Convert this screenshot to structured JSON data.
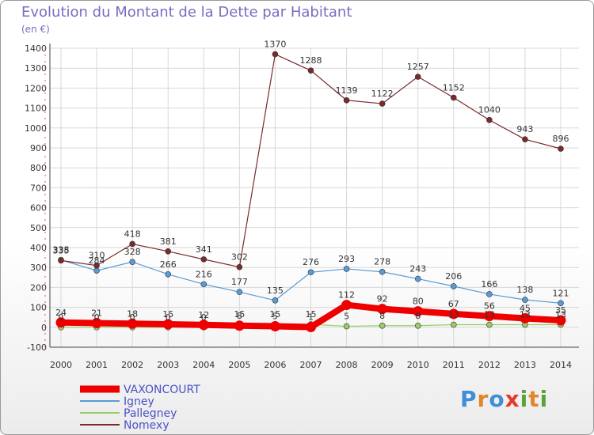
{
  "title": "Evolution du Montant de la Dette par Habitant",
  "subtitle": "(en €)",
  "brand": {
    "letters": [
      "P",
      "r",
      "o",
      "x",
      "i",
      "t",
      "i"
    ]
  },
  "chart_data": {
    "type": "line",
    "x": [
      2000,
      2001,
      2002,
      2003,
      2004,
      2005,
      2006,
      2007,
      2008,
      2009,
      2010,
      2011,
      2012,
      2013,
      2014
    ],
    "ylim": [
      -100,
      1400
    ],
    "yticks": [
      -100,
      0,
      100,
      200,
      300,
      400,
      500,
      600,
      700,
      800,
      900,
      1000,
      1100,
      1200,
      1300,
      1400
    ],
    "grid": true,
    "legend_position": "bottom-left",
    "series": [
      {
        "name": "VAXONCOURT",
        "color": "#ee0000",
        "values": [
          24,
          21,
          18,
          15,
          12,
          8,
          5,
          1,
          112,
          92,
          80,
          67,
          56,
          45,
          35
        ]
      },
      {
        "name": "Igney",
        "color": "#5b9bd5",
        "values": [
          338,
          284,
          328,
          266,
          216,
          177,
          135,
          276,
          293,
          278,
          243,
          206,
          166,
          138,
          121
        ]
      },
      {
        "name": "Pallegney",
        "color": "#99cc66",
        "values": [
          0,
          0,
          0,
          0,
          0,
          15,
          15,
          15,
          5,
          8,
          8,
          13,
          13,
          13,
          13
        ]
      },
      {
        "name": "Nomexy",
        "color": "#7a2a2a",
        "values": [
          335,
          310,
          418,
          381,
          341,
          302,
          1370,
          1288,
          1139,
          1122,
          1257,
          1152,
          1040,
          943,
          896
        ]
      }
    ]
  }
}
